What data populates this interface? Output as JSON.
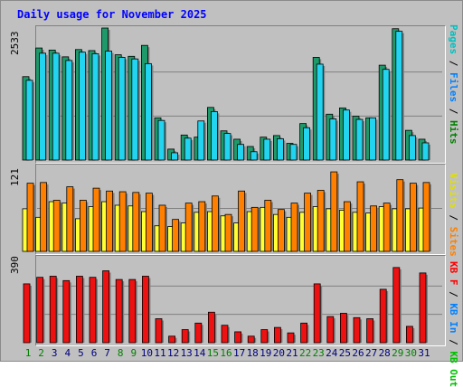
{
  "title": "Daily usage for November 2025",
  "colors": {
    "pages": "#00c0c0",
    "files": "#0080ff",
    "hits": "#008000",
    "visits": "#ffff00",
    "sites": "#ff8000",
    "kbf": "#ff0000",
    "kbin": "#0080ff",
    "kbout": "#00c000",
    "weekend_day": "#008000",
    "weekday": "#000080"
  },
  "legends": {
    "top": [
      {
        "text": "Pages",
        "color": "#00c0c0"
      },
      {
        "text": " / ",
        "color": "#000000"
      },
      {
        "text": "Files",
        "color": "#0080ff"
      },
      {
        "text": " / ",
        "color": "#000000"
      },
      {
        "text": "Hits",
        "color": "#008000"
      }
    ],
    "middle": [
      {
        "text": "Visits",
        "color": "#e0e000"
      },
      {
        "text": " / ",
        "color": "#000000"
      },
      {
        "text": "Sites",
        "color": "#ff8000"
      }
    ],
    "bottom": [
      {
        "text": "KB F",
        "color": "#ff0000"
      },
      {
        "text": " / ",
        "color": "#000000"
      },
      {
        "text": "KB In",
        "color": "#0080ff"
      },
      {
        "text": " / ",
        "color": "#000000"
      },
      {
        "text": "KB Out",
        "color": "#00c000"
      }
    ]
  },
  "chart_data": {
    "type": "bar",
    "categories": [
      "1",
      "2",
      "3",
      "4",
      "5",
      "6",
      "7",
      "8",
      "9",
      "10",
      "11",
      "12",
      "13",
      "14",
      "15",
      "16",
      "17",
      "18",
      "19",
      "20",
      "21",
      "22",
      "23",
      "24",
      "25",
      "26",
      "27",
      "28",
      "29",
      "30",
      "31"
    ],
    "weekend_days": [
      "1",
      "2",
      "8",
      "9",
      "15",
      "16",
      "22",
      "23",
      "29",
      "30"
    ],
    "panels": [
      {
        "name": "hits-files-pages",
        "max_label": "2533",
        "ylim": [
          0,
          2533
        ],
        "series": [
          {
            "name": "Hits",
            "values": [
              1600,
              2150,
              2110,
              1980,
              2120,
              2100,
              2533,
              2020,
              1990,
              2200,
              810,
              210,
              480,
              440,
              1010,
              560,
              400,
              260,
              440,
              470,
              320,
              700,
              1970,
              880,
              1000,
              840,
              810,
              1820,
              2520,
              570,
              400
            ]
          },
          {
            "name": "Files",
            "values": [
              1530,
              2050,
              2050,
              1910,
              2070,
              2040,
              2090,
              1970,
              1940,
              1850,
              760,
              140,
              420,
              750,
              930,
              510,
              300,
              160,
              400,
              410,
              300,
              620,
              1840,
              790,
              960,
              780,
              810,
              1740,
              2470,
              470,
              330
            ]
          }
        ]
      },
      {
        "name": "visits-sites",
        "max_label": "121",
        "ylim": [
          0,
          121
        ],
        "series": [
          {
            "name": "Sites",
            "values": [
              96,
              97,
              72,
              91,
              72,
              89,
              85,
              84,
              83,
              82,
              65,
              45,
              68,
              70,
              78,
              52,
              85,
              62,
              72,
              59,
              68,
              82,
              86,
              112,
              70,
              98,
              64,
              68,
              101,
              96,
              97
            ]
          },
          {
            "name": "Visits",
            "values": [
              60,
              48,
              70,
              68,
              46,
              63,
              70,
              65,
              64,
              56,
              36,
              35,
              40,
              55,
              56,
              50,
              40,
              56,
              62,
              52,
              48,
              55,
              63,
              60,
              58,
              55,
              54,
              63,
              60,
              60,
              61
            ]
          }
        ]
      },
      {
        "name": "kbf",
        "max_label": "390",
        "ylim": [
          0,
          390
        ],
        "series": [
          {
            "name": "KB F",
            "values": [
              270,
              300,
              305,
              285,
              305,
              300,
              330,
              290,
              290,
              305,
              110,
              30,
              60,
              90,
              140,
              80,
              50,
              30,
              60,
              70,
              45,
              90,
              270,
              120,
              135,
              115,
              110,
              245,
              345,
              75,
              320
            ]
          }
        ]
      }
    ]
  }
}
